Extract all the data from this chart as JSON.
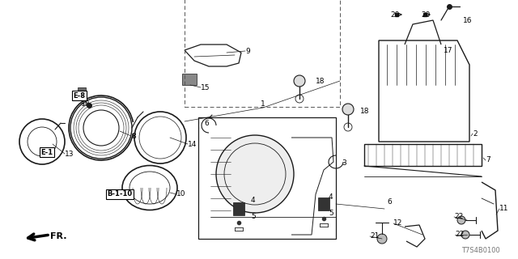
{
  "bg_color": "#ffffff",
  "diagram_code": "T7S4B0100",
  "fr_label": "FR.",
  "line_color": "#1a1a1a",
  "label_color": "#000000",
  "gray": "#555555",
  "fig_w": 6.4,
  "fig_h": 3.2,
  "xlim": [
    0,
    640
  ],
  "ylim": [
    0,
    320
  ]
}
